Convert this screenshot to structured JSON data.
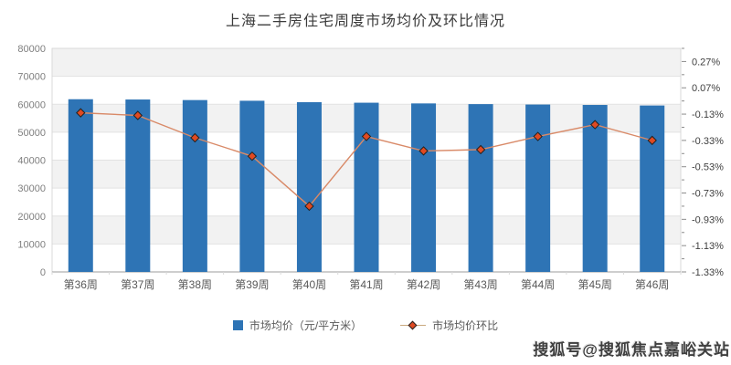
{
  "page": {
    "watermark": "搜狐号@搜狐焦点嘉峪关站"
  },
  "colors": {
    "bar": "#2e74b5",
    "line": "#d98a68",
    "marker_fill": "#e04a22",
    "marker_stroke": "#222222",
    "band": "#f2f2f2",
    "band_alt": "#ffffff",
    "grid": "#e2e2e2",
    "plot_border": "#d9d9d9",
    "axis_line": "#9e9e9e",
    "tick": "#8c8c8c",
    "left_label": "#7f7f7f",
    "right_label": "#404040",
    "x_label": "#595959"
  },
  "chart_data": {
    "type": "bar",
    "subtype": "combo-bar-line-dual-axis",
    "title": "上海二手房住宅周度市场均价及环比情况",
    "categories": [
      "第36周",
      "第37周",
      "第38周",
      "第39周",
      "第40周",
      "第41周",
      "第42周",
      "第43周",
      "第44周",
      "第45周",
      "第46周"
    ],
    "series": [
      {
        "name": "市场均价（元/平方米）",
        "render": "bar",
        "axis": "left",
        "values": [
          61800,
          61700,
          61500,
          61250,
          60750,
          60550,
          60300,
          60050,
          59900,
          59750,
          59550
        ]
      },
      {
        "name": "市场均价环比",
        "render": "line",
        "axis": "right",
        "values": [
          -0.12,
          -0.14,
          -0.31,
          -0.45,
          -0.83,
          -0.3,
          -0.41,
          -0.4,
          -0.3,
          -0.21,
          -0.33
        ]
      }
    ],
    "left_axis": {
      "min": 0,
      "max": 80000,
      "tick_step": 10000,
      "tick_labels": [
        "0",
        "10000",
        "20000",
        "30000",
        "40000",
        "50000",
        "60000",
        "70000",
        "80000"
      ]
    },
    "right_axis": {
      "top": 0.37,
      "bottom": -1.33,
      "major_step": 0.2,
      "minor_step": 0.1,
      "labels": [
        "0.27%",
        "0.07%",
        "-0.13%",
        "-0.33%",
        "-0.53%",
        "-0.73%",
        "-0.93%",
        "-1.13%",
        "-1.33%"
      ],
      "format": "percent"
    },
    "grid": true,
    "legend_position": "bottom"
  }
}
